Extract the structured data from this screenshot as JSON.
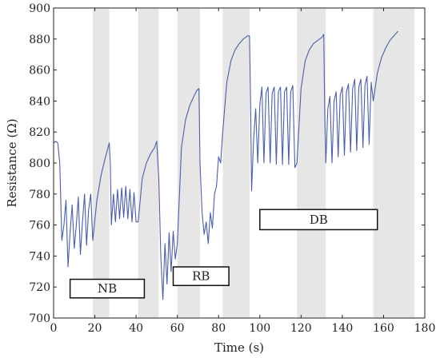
{
  "chart_data": {
    "type": "line",
    "xlabel": "Time (s)",
    "ylabel": "Resistance (Ω)",
    "xlim": [
      0,
      180
    ],
    "ylim": [
      700,
      900
    ],
    "xticks": [
      0,
      20,
      40,
      60,
      80,
      100,
      120,
      140,
      160,
      180
    ],
    "yticks": [
      700,
      720,
      740,
      760,
      780,
      800,
      820,
      840,
      860,
      880,
      900
    ],
    "grid": false,
    "line_color": "#4a5fae",
    "shaded_color": "#e6e6e6",
    "shaded_bands": [
      [
        19,
        27
      ],
      [
        41,
        51
      ],
      [
        60,
        71
      ],
      [
        82,
        95
      ],
      [
        118,
        132
      ],
      [
        155,
        175
      ]
    ],
    "annotations": [
      {
        "text": "NB",
        "x0": 8,
        "x1": 44,
        "y0": 713,
        "y1": 725
      },
      {
        "text": "RB",
        "x0": 58,
        "x1": 85,
        "y0": 721,
        "y1": 733
      },
      {
        "text": "DB",
        "x0": 100,
        "x1": 157,
        "y0": 757,
        "y1": 770
      }
    ],
    "series": [
      {
        "points": [
          [
            0,
            813
          ],
          [
            1,
            814
          ],
          [
            2,
            813
          ],
          [
            3,
            800
          ],
          [
            4,
            750
          ],
          [
            5,
            760
          ],
          [
            6,
            776
          ],
          [
            7,
            733
          ],
          [
            8,
            755
          ],
          [
            9,
            773
          ],
          [
            10,
            745
          ],
          [
            11,
            760
          ],
          [
            12,
            778
          ],
          [
            13,
            741
          ],
          [
            14,
            762
          ],
          [
            15,
            780
          ],
          [
            16,
            747
          ],
          [
            17,
            770
          ],
          [
            18,
            780
          ],
          [
            19,
            750
          ],
          [
            21,
            776
          ],
          [
            23,
            792
          ],
          [
            25,
            803
          ],
          [
            26,
            808
          ],
          [
            27,
            813
          ],
          [
            27.5,
            800
          ],
          [
            28,
            760
          ],
          [
            29,
            780
          ],
          [
            30,
            762
          ],
          [
            31,
            783
          ],
          [
            32,
            764
          ],
          [
            33,
            784
          ],
          [
            34,
            765
          ],
          [
            35,
            785
          ],
          [
            36,
            764
          ],
          [
            37,
            783
          ],
          [
            38,
            762
          ],
          [
            39,
            781
          ],
          [
            40,
            762
          ],
          [
            41,
            762
          ],
          [
            43,
            790
          ],
          [
            45,
            800
          ],
          [
            47,
            806
          ],
          [
            49,
            810
          ],
          [
            50,
            814
          ],
          [
            51,
            790
          ],
          [
            52,
            740
          ],
          [
            53,
            712
          ],
          [
            54,
            748
          ],
          [
            55,
            722
          ],
          [
            56,
            755
          ],
          [
            57,
            730
          ],
          [
            58,
            756
          ],
          [
            59,
            738
          ],
          [
            60,
            748
          ],
          [
            62,
            810
          ],
          [
            64,
            828
          ],
          [
            66,
            837
          ],
          [
            68,
            843
          ],
          [
            69.5,
            847
          ],
          [
            70.5,
            848
          ],
          [
            71,
            800
          ],
          [
            72,
            768
          ],
          [
            73,
            754
          ],
          [
            74,
            762
          ],
          [
            75,
            748
          ],
          [
            76,
            768
          ],
          [
            77,
            758
          ],
          [
            78,
            780
          ],
          [
            79,
            785
          ],
          [
            80,
            804
          ],
          [
            81,
            800
          ],
          [
            82,
            820
          ],
          [
            84,
            852
          ],
          [
            86,
            866
          ],
          [
            88,
            873
          ],
          [
            90,
            877
          ],
          [
            92,
            880
          ],
          [
            94,
            882
          ],
          [
            95,
            882
          ],
          [
            95.5,
            840
          ],
          [
            96,
            782
          ],
          [
            97,
            815
          ],
          [
            98,
            835
          ],
          [
            99,
            800
          ],
          [
            100,
            838
          ],
          [
            101,
            849
          ],
          [
            102,
            800
          ],
          [
            103,
            845
          ],
          [
            104,
            849
          ],
          [
            105,
            800
          ],
          [
            106,
            845
          ],
          [
            107,
            849
          ],
          [
            108,
            799
          ],
          [
            109,
            846
          ],
          [
            110,
            849
          ],
          [
            111,
            799
          ],
          [
            112,
            846
          ],
          [
            113,
            849
          ],
          [
            114,
            799
          ],
          [
            115,
            846
          ],
          [
            116,
            850
          ],
          [
            117,
            797
          ],
          [
            118,
            800
          ],
          [
            120,
            848
          ],
          [
            122,
            866
          ],
          [
            124,
            873
          ],
          [
            126,
            877
          ],
          [
            128,
            879
          ],
          [
            130,
            881
          ],
          [
            131,
            883
          ],
          [
            131.5,
            830
          ],
          [
            132,
            800
          ],
          [
            133,
            835
          ],
          [
            134,
            843
          ],
          [
            135,
            800
          ],
          [
            136,
            840
          ],
          [
            137,
            846
          ],
          [
            138,
            804
          ],
          [
            139,
            844
          ],
          [
            140,
            849
          ],
          [
            141,
            805
          ],
          [
            142,
            846
          ],
          [
            143,
            851
          ],
          [
            144,
            807
          ],
          [
            145,
            848
          ],
          [
            146,
            854
          ],
          [
            147,
            808
          ],
          [
            148,
            849
          ],
          [
            149,
            854
          ],
          [
            150,
            810
          ],
          [
            151,
            850
          ],
          [
            152,
            856
          ],
          [
            153,
            812
          ],
          [
            154,
            852
          ],
          [
            155,
            840
          ],
          [
            157,
            858
          ],
          [
            159,
            868
          ],
          [
            161,
            874
          ],
          [
            163,
            879
          ],
          [
            165,
            882
          ],
          [
            167,
            885
          ]
        ]
      }
    ]
  }
}
